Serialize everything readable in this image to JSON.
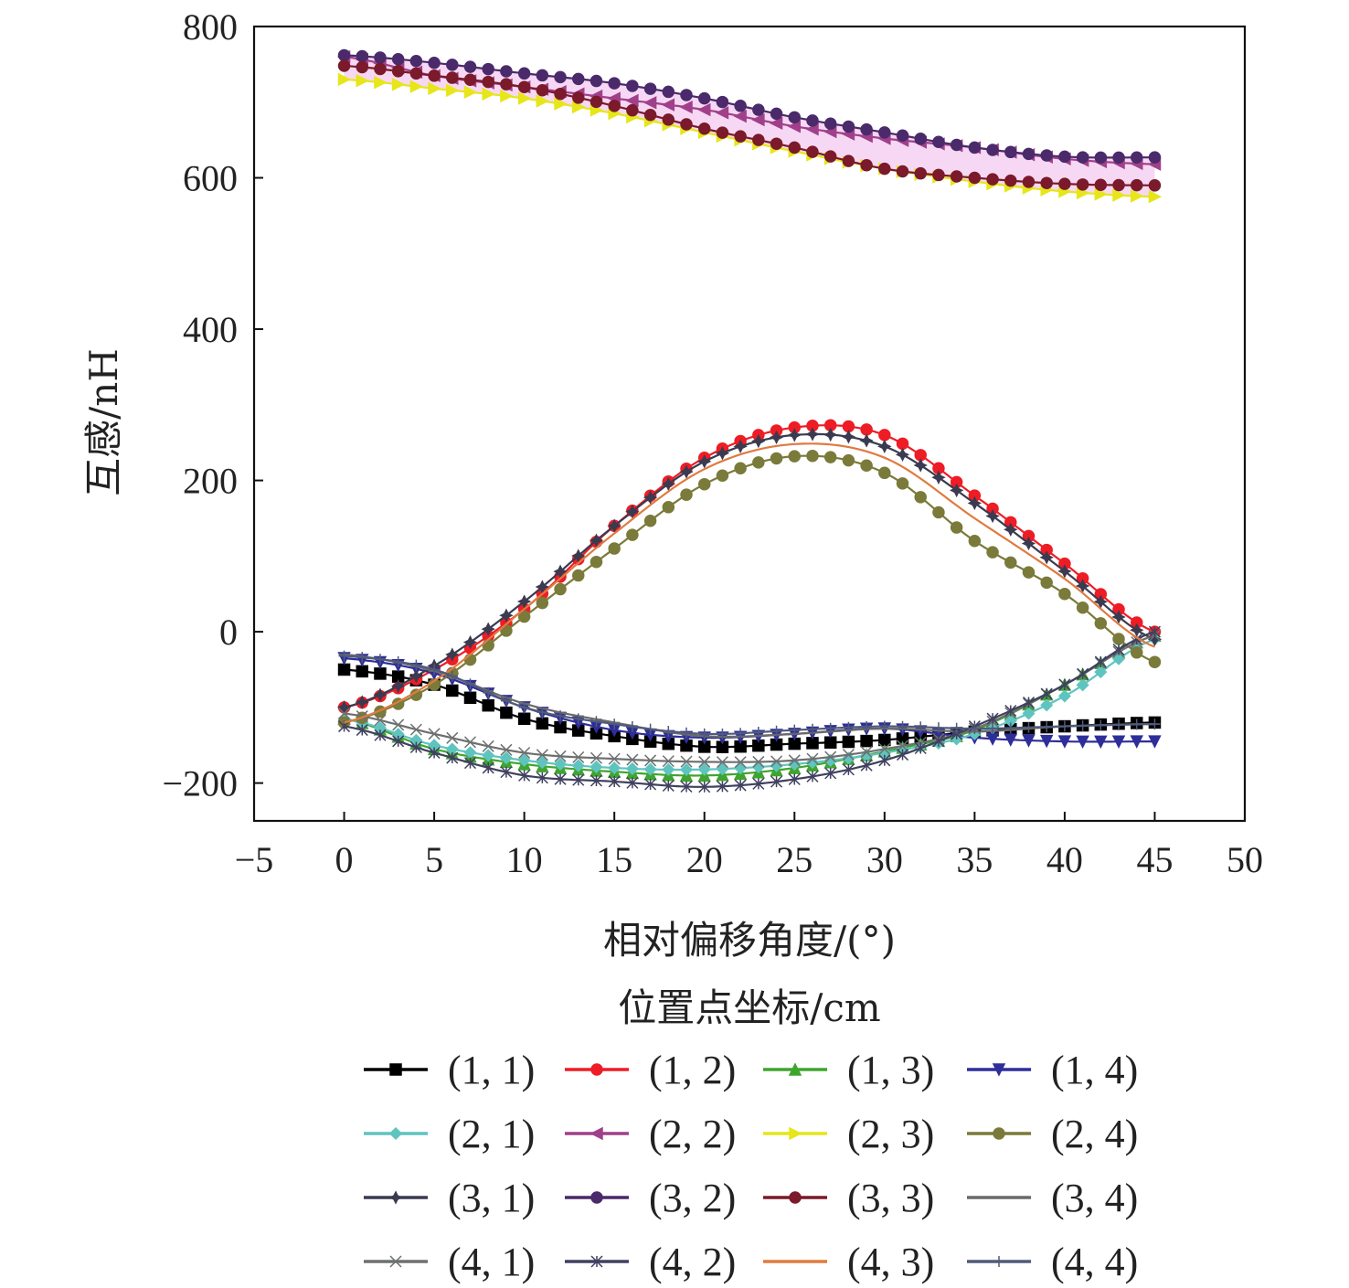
{
  "chart_data": {
    "type": "line",
    "xlabel": "相对偏移角度/(°)",
    "xlabel2": "位置点坐标/cm",
    "ylabel": "互感/nH",
    "xlim": [
      -5,
      50
    ],
    "ylim": [
      -250,
      800
    ],
    "xticks": [
      -5,
      0,
      5,
      10,
      15,
      20,
      25,
      30,
      35,
      40,
      45,
      50
    ],
    "yticks": [
      -200,
      0,
      200,
      400,
      600,
      800
    ],
    "x": [
      0,
      5,
      10,
      15,
      20,
      25,
      30,
      35,
      40,
      45
    ],
    "series": [
      {
        "name": "(1, 1)",
        "color": "#000000",
        "marker": "square",
        "values": [
          -50,
          -70,
          -115,
          -138,
          -152,
          -148,
          -143,
          -132,
          -125,
          -120
        ]
      },
      {
        "name": "(1, 2)",
        "color": "#ee1c25",
        "marker": "circle",
        "values": [
          -100,
          -50,
          30,
          140,
          230,
          270,
          260,
          180,
          90,
          0
        ]
      },
      {
        "name": "(1, 3)",
        "color": "#3fa52e",
        "marker": "triangle-up",
        "values": [
          -115,
          -155,
          -175,
          -185,
          -190,
          -180,
          -158,
          -130,
          -70,
          -5
        ]
      },
      {
        "name": "(1, 4)",
        "color": "#2e2e9a",
        "marker": "triangle-down",
        "values": [
          -35,
          -55,
          -100,
          -130,
          -140,
          -135,
          -128,
          -140,
          -145,
          -145
        ]
      },
      {
        "name": "(2, 1)",
        "color": "#5fc4c0",
        "marker": "diamond",
        "values": [
          -115,
          -150,
          -170,
          -180,
          -182,
          -175,
          -160,
          -135,
          -85,
          -10
        ]
      },
      {
        "name": "(2, 2)",
        "color": "#a0408a",
        "marker": "triangle-left",
        "values": [
          760,
          735,
          720,
          705,
          690,
          668,
          652,
          640,
          625,
          618
        ]
      },
      {
        "name": "(2, 3)",
        "color": "#e6e61a",
        "marker": "triangle-right",
        "values": [
          730,
          718,
          705,
          685,
          660,
          635,
          612,
          595,
          582,
          575
        ]
      },
      {
        "name": "(2, 4)",
        "color": "#7a7a3a",
        "marker": "hexagon",
        "values": [
          -120,
          -70,
          20,
          110,
          195,
          232,
          210,
          120,
          50,
          -40
        ]
      },
      {
        "name": "(3, 1)",
        "color": "#3a3a50",
        "marker": "star",
        "values": [
          -100,
          -45,
          40,
          140,
          225,
          260,
          245,
          170,
          80,
          -10
        ]
      },
      {
        "name": "(3, 2)",
        "color": "#4a2a6a",
        "marker": "pentagon",
        "values": [
          762,
          752,
          738,
          725,
          705,
          680,
          660,
          640,
          628,
          627
        ]
      },
      {
        "name": "(3, 3)",
        "color": "#7a1a2a",
        "marker": "half-circle",
        "values": [
          748,
          735,
          720,
          695,
          665,
          640,
          612,
          600,
          592,
          590
        ]
      },
      {
        "name": "(3, 4)",
        "color": "#6a6a6a",
        "marker": "minus",
        "values": [
          -30,
          -52,
          -95,
          -120,
          -138,
          -135,
          -128,
          -132,
          -125,
          -122
        ]
      },
      {
        "name": "(4, 1)",
        "color": "#6e7070",
        "marker": "x",
        "values": [
          -108,
          -135,
          -160,
          -168,
          -172,
          -170,
          -155,
          -128,
          -70,
          -5
        ]
      },
      {
        "name": "(4, 2)",
        "color": "#404060",
        "marker": "cross",
        "values": [
          -125,
          -160,
          -190,
          -198,
          -205,
          -195,
          -170,
          -125,
          -70,
          0
        ]
      },
      {
        "name": "(4, 3)",
        "color": "#e07a40",
        "marker": "none",
        "values": [
          -120,
          -65,
          30,
          130,
          215,
          248,
          230,
          150,
          70,
          -20
        ]
      },
      {
        "name": "(4, 4)",
        "color": "#505a7a",
        "marker": "plus",
        "values": [
          -32,
          -50,
          -100,
          -122,
          -135,
          -130,
          -125,
          -128,
          -125,
          -122
        ]
      }
    ]
  }
}
